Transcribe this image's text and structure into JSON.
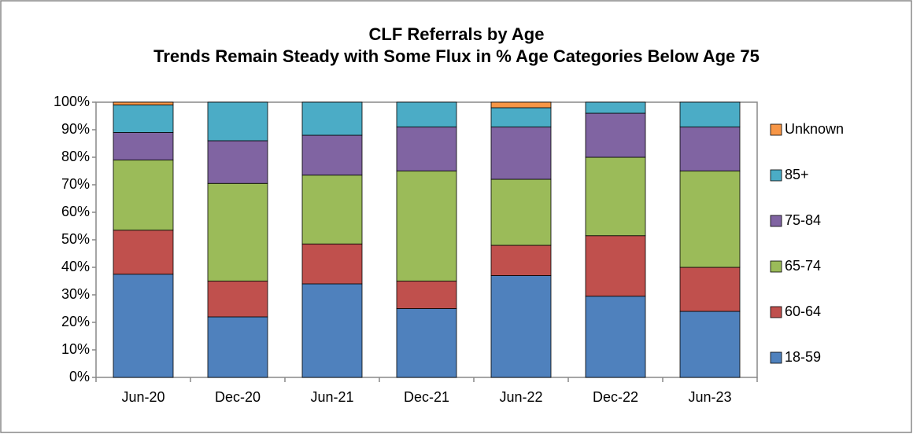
{
  "chart_data": {
    "type": "stacked_bar",
    "title": "CLF Referrals by Age",
    "subtitle": "Trends Remain Steady with Some Flux in % Age Categories Below Age 75",
    "categories": [
      "Jun-20",
      "Dec-20",
      "Jun-21",
      "Dec-21",
      "Jun-22",
      "Dec-22",
      "Jun-23"
    ],
    "series": [
      {
        "name": "18-59",
        "color": "#4f81bd",
        "values": [
          37.5,
          22,
          34,
          25,
          37,
          29.5,
          24
        ]
      },
      {
        "name": "60-64",
        "color": "#c0504d",
        "values": [
          16,
          13,
          14.5,
          10,
          11,
          22,
          16
        ]
      },
      {
        "name": "65-74",
        "color": "#9bbb59",
        "values": [
          25.5,
          35.5,
          25,
          40,
          24,
          28.5,
          35
        ]
      },
      {
        "name": "75-84",
        "color": "#8064a2",
        "values": [
          10,
          15.5,
          14.5,
          16,
          19,
          16,
          16
        ]
      },
      {
        "name": "85+",
        "color": "#4bacc6",
        "values": [
          10,
          14,
          12,
          9,
          7,
          4,
          9
        ]
      },
      {
        "name": "Unknown",
        "color": "#f79646",
        "values": [
          1,
          0,
          0,
          0,
          2,
          0,
          0
        ]
      }
    ],
    "ylim": [
      0,
      100
    ],
    "yticks": [
      {
        "value": 0,
        "label": "0%"
      },
      {
        "value": 10,
        "label": "10%"
      },
      {
        "value": 20,
        "label": "20%"
      },
      {
        "value": 30,
        "label": "30%"
      },
      {
        "value": 40,
        "label": "40%"
      },
      {
        "value": 50,
        "label": "50%"
      },
      {
        "value": 60,
        "label": "60%"
      },
      {
        "value": 70,
        "label": "70%"
      },
      {
        "value": 80,
        "label": "80%"
      },
      {
        "value": 90,
        "label": "90%"
      },
      {
        "value": 100,
        "label": "100%"
      }
    ],
    "legend": "right"
  }
}
